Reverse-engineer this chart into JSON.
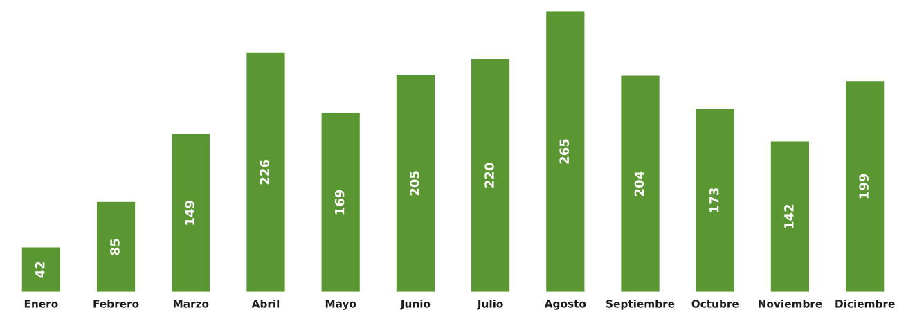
{
  "chart_data": {
    "type": "bar",
    "categories": [
      "Enero",
      "Febrero",
      "Marzo",
      "Abril",
      "Mayo",
      "Junio",
      "Julio",
      "Agosto",
      "Septiembre",
      "Octubre",
      "Noviembre",
      "Diciembre"
    ],
    "values": [
      42,
      85,
      149,
      226,
      169,
      205,
      220,
      265,
      204,
      173,
      142,
      199
    ],
    "color": "#5a9632",
    "data_labels": true,
    "grid": false,
    "legend": false
  }
}
